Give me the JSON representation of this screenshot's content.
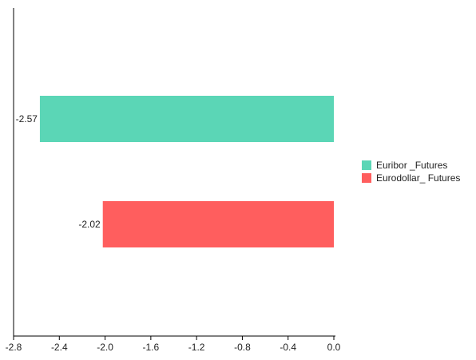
{
  "chart_data": {
    "type": "bar",
    "orientation": "horizontal",
    "title": "",
    "xlabel": "",
    "ylabel": "",
    "xlim": [
      -2.8,
      0.0
    ],
    "x_ticks": [
      "-2.8",
      "-2.4",
      "-2.0",
      "-1.6",
      "-1.2",
      "-0.8",
      "-0.4",
      "0.0"
    ],
    "x_tick_values": [
      -2.8,
      -2.4,
      -2.0,
      -1.6,
      -1.2,
      -0.8,
      -0.4,
      0.0
    ],
    "grid": false,
    "legend_position": "right",
    "series": [
      {
        "name": "Euribor _Futures",
        "value": -2.57,
        "label": "-2.57",
        "color": "#5bd6b6"
      },
      {
        "name": "Eurodollar_ Futures",
        "value": -2.02,
        "label": "-2.02",
        "color": "#ff5e5e"
      }
    ]
  }
}
